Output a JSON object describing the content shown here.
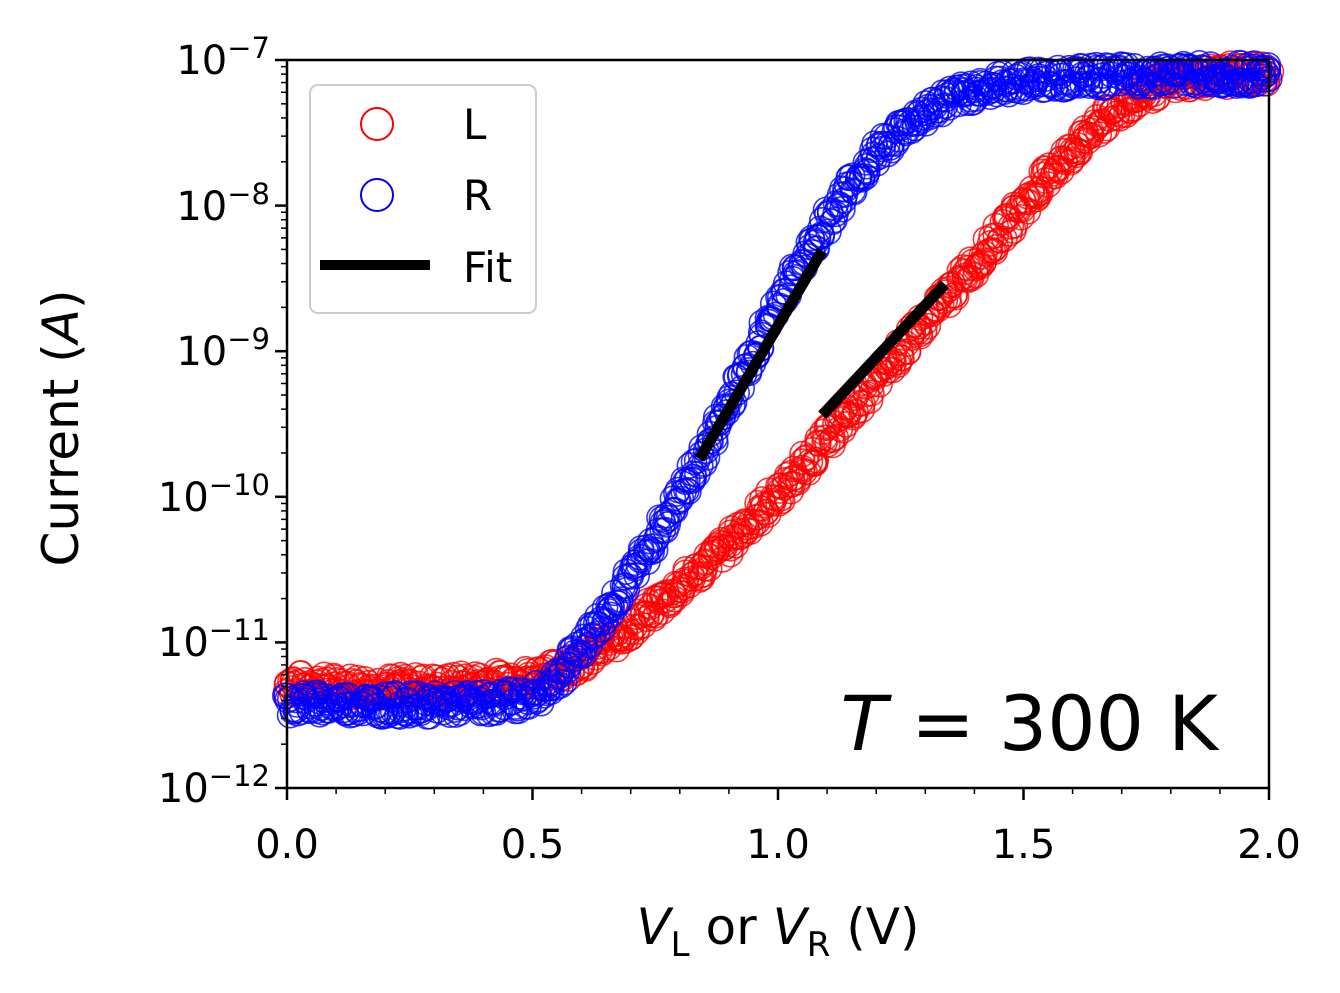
{
  "chart_data": {
    "type": "scatter",
    "yscale": "log",
    "xlim": [
      0.0,
      2.0
    ],
    "ylim_exponents": [
      -12,
      -7
    ],
    "x_ticks": [
      0.0,
      0.5,
      1.0,
      1.5,
      2.0
    ],
    "x_tick_labels": [
      "0.0",
      "0.5",
      "1.0",
      "1.5",
      "2.0"
    ],
    "y_ticks": [
      {
        "base": "10",
        "exp": "−12",
        "log": -12
      },
      {
        "base": "10",
        "exp": "−11",
        "log": -11
      },
      {
        "base": "10",
        "exp": "−10",
        "log": -10
      },
      {
        "base": "10",
        "exp": "−9",
        "log": -9
      },
      {
        "base": "10",
        "exp": "−8",
        "log": -8
      },
      {
        "base": "10",
        "exp": "−7",
        "log": -7
      }
    ],
    "ylabel": "Current (A)",
    "ylabel_prefix": "Current (",
    "ylabel_italic": "A",
    "ylabel_suffix": ")",
    "xlabel": {
      "v1": "V",
      "sub1": "L",
      "mid": " or ",
      "v2": "V",
      "sub2": "R",
      "unit": " (V)"
    },
    "annotation": {
      "italic": "T",
      "rest": " = 300 K"
    },
    "legend": [
      {
        "label": "L",
        "kind": "marker",
        "color": "#ff0000"
      },
      {
        "label": "R",
        "kind": "marker",
        "color": "#0000ff"
      },
      {
        "label": "Fit",
        "kind": "line",
        "color": "#000000"
      }
    ],
    "series": [
      {
        "name": "L",
        "color": "#ff0000",
        "points_log10": [
          [
            0.0,
            -11.28
          ],
          [
            0.1,
            -11.3
          ],
          [
            0.2,
            -11.3
          ],
          [
            0.3,
            -11.3
          ],
          [
            0.4,
            -11.28
          ],
          [
            0.5,
            -11.24
          ],
          [
            0.55,
            -11.2
          ],
          [
            0.6,
            -11.12
          ],
          [
            0.65,
            -11.02
          ],
          [
            0.7,
            -10.9
          ],
          [
            0.75,
            -10.76
          ],
          [
            0.8,
            -10.62
          ],
          [
            0.85,
            -10.47
          ],
          [
            0.9,
            -10.32
          ],
          [
            0.95,
            -10.15
          ],
          [
            1.0,
            -9.98
          ],
          [
            1.05,
            -9.8
          ],
          [
            1.1,
            -9.6
          ],
          [
            1.15,
            -9.4
          ],
          [
            1.2,
            -9.2
          ],
          [
            1.25,
            -9.0
          ],
          [
            1.3,
            -8.8
          ],
          [
            1.35,
            -8.6
          ],
          [
            1.4,
            -8.4
          ],
          [
            1.45,
            -8.2
          ],
          [
            1.5,
            -8.0
          ],
          [
            1.55,
            -7.8
          ],
          [
            1.6,
            -7.62
          ],
          [
            1.65,
            -7.46
          ],
          [
            1.7,
            -7.32
          ],
          [
            1.75,
            -7.22
          ],
          [
            1.8,
            -7.15
          ],
          [
            1.85,
            -7.12
          ],
          [
            1.9,
            -7.11
          ],
          [
            1.95,
            -7.1
          ],
          [
            2.0,
            -7.1
          ]
        ]
      },
      {
        "name": "R",
        "color": "#0000ff",
        "points_log10": [
          [
            0.0,
            -11.42
          ],
          [
            0.1,
            -11.42
          ],
          [
            0.2,
            -11.43
          ],
          [
            0.3,
            -11.43
          ],
          [
            0.4,
            -11.42
          ],
          [
            0.5,
            -11.38
          ],
          [
            0.55,
            -11.25
          ],
          [
            0.6,
            -11.02
          ],
          [
            0.65,
            -10.8
          ],
          [
            0.7,
            -10.55
          ],
          [
            0.75,
            -10.28
          ],
          [
            0.8,
            -10.0
          ],
          [
            0.85,
            -9.7
          ],
          [
            0.9,
            -9.35
          ],
          [
            0.95,
            -9.0
          ],
          [
            1.0,
            -8.68
          ],
          [
            1.05,
            -8.38
          ],
          [
            1.1,
            -8.1
          ],
          [
            1.15,
            -7.85
          ],
          [
            1.2,
            -7.65
          ],
          [
            1.25,
            -7.48
          ],
          [
            1.3,
            -7.36
          ],
          [
            1.35,
            -7.27
          ],
          [
            1.4,
            -7.21
          ],
          [
            1.45,
            -7.17
          ],
          [
            1.5,
            -7.14
          ],
          [
            1.6,
            -7.12
          ],
          [
            1.7,
            -7.11
          ],
          [
            1.8,
            -7.1
          ],
          [
            1.9,
            -7.1
          ],
          [
            2.0,
            -7.1
          ]
        ]
      }
    ],
    "fits": [
      {
        "name": "Fit R",
        "color": "#000000",
        "from": [
          0.84,
          -9.74
        ],
        "to": [
          1.09,
          -8.31
        ]
      },
      {
        "name": "Fit L",
        "color": "#000000",
        "from": [
          1.09,
          -9.44
        ],
        "to": [
          1.34,
          -8.54
        ]
      }
    ]
  }
}
